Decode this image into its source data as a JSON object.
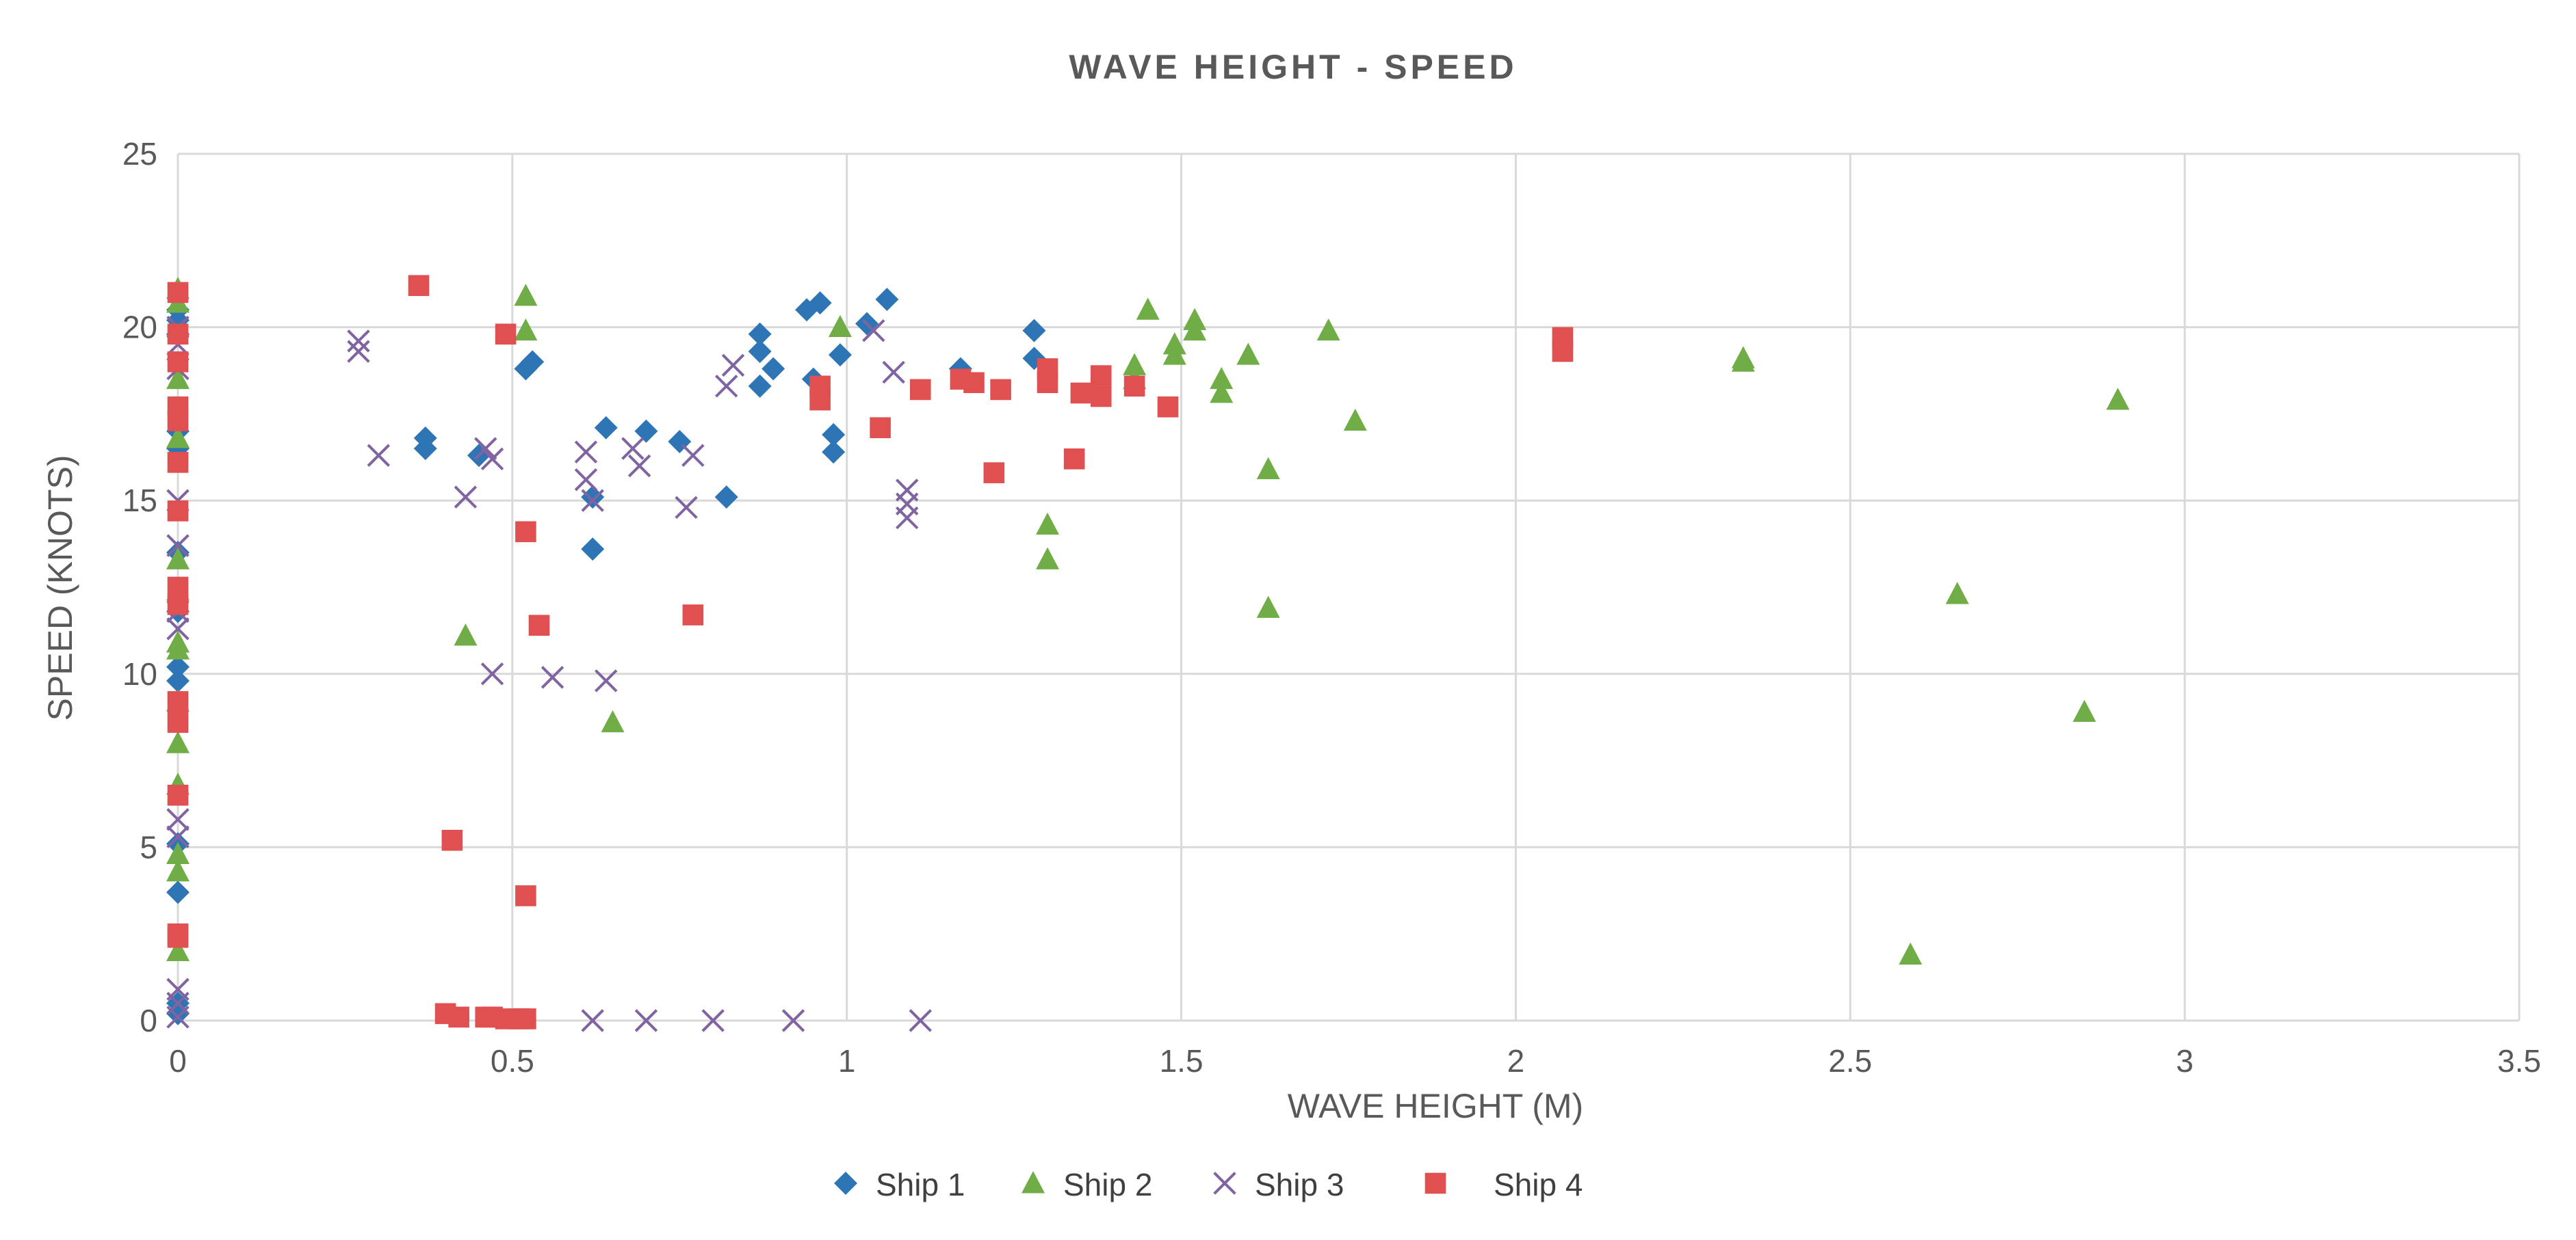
{
  "chart_data": {
    "type": "scatter",
    "title": "WAVE HEIGHT - SPEED",
    "xlabel": "WAVE HEIGHT (M)",
    "ylabel": "SPEED (KNOTS)",
    "xlim": [
      0,
      3.5
    ],
    "ylim": [
      0,
      25
    ],
    "xticks": [
      0,
      0.5,
      1,
      1.5,
      2,
      2.5,
      3,
      3.5
    ],
    "yticks": [
      0,
      5,
      10,
      15,
      20,
      25
    ],
    "grid": true,
    "legend_position": "bottom",
    "series": [
      {
        "name": "Ship 1",
        "color": "#2E75B6",
        "marker": "diamond",
        "points": [
          [
            0,
            20.5
          ],
          [
            0,
            20.2
          ],
          [
            0,
            19.8
          ],
          [
            0,
            17.0
          ],
          [
            0,
            16.5
          ],
          [
            0,
            13.5
          ],
          [
            0,
            11.8
          ],
          [
            0,
            10.2
          ],
          [
            0,
            9.8
          ],
          [
            0,
            5.1
          ],
          [
            0,
            3.7
          ],
          [
            0,
            0.5
          ],
          [
            0,
            0.2
          ],
          [
            0.37,
            16.8
          ],
          [
            0.37,
            16.5
          ],
          [
            0.45,
            16.3
          ],
          [
            0.52,
            18.8
          ],
          [
            0.53,
            19.0
          ],
          [
            0.62,
            15.1
          ],
          [
            0.62,
            13.6
          ],
          [
            0.64,
            17.1
          ],
          [
            0.7,
            17.0
          ],
          [
            0.75,
            16.7
          ],
          [
            0.82,
            15.1
          ],
          [
            0.87,
            19.8
          ],
          [
            0.87,
            19.3
          ],
          [
            0.89,
            18.8
          ],
          [
            0.87,
            18.3
          ],
          [
            0.94,
            20.5
          ],
          [
            0.96,
            20.7
          ],
          [
            0.95,
            18.5
          ],
          [
            0.98,
            16.9
          ],
          [
            0.98,
            16.4
          ],
          [
            0.99,
            19.2
          ],
          [
            1.03,
            20.1
          ],
          [
            1.06,
            20.8
          ],
          [
            1.17,
            18.8
          ],
          [
            1.28,
            19.9
          ],
          [
            1.28,
            19.1
          ]
        ]
      },
      {
        "name": "Ship 2",
        "color": "#70AD47",
        "marker": "triangle",
        "points": [
          [
            0,
            21.1
          ],
          [
            0,
            20.7
          ],
          [
            0,
            18.5
          ],
          [
            0,
            16.8
          ],
          [
            0,
            13.3
          ],
          [
            0,
            12.4
          ],
          [
            0,
            10.9
          ],
          [
            0,
            10.7
          ],
          [
            0,
            9.2
          ],
          [
            0,
            8.0
          ],
          [
            0,
            6.8
          ],
          [
            0,
            4.8
          ],
          [
            0,
            4.3
          ],
          [
            0,
            2.0
          ],
          [
            0.43,
            11.1
          ],
          [
            0.52,
            20.9
          ],
          [
            0.52,
            19.9
          ],
          [
            0.65,
            8.6
          ],
          [
            0.99,
            20.0
          ],
          [
            1.3,
            14.3
          ],
          [
            1.3,
            13.3
          ],
          [
            1.43,
            18.9
          ],
          [
            1.43,
            18.5
          ],
          [
            1.45,
            20.5
          ],
          [
            1.49,
            19.5
          ],
          [
            1.49,
            19.2
          ],
          [
            1.52,
            20.2
          ],
          [
            1.52,
            19.9
          ],
          [
            1.56,
            18.5
          ],
          [
            1.56,
            18.1
          ],
          [
            1.6,
            19.2
          ],
          [
            1.63,
            15.9
          ],
          [
            1.63,
            11.9
          ],
          [
            1.72,
            19.9
          ],
          [
            1.76,
            17.3
          ],
          [
            2.34,
            19.1
          ],
          [
            2.34,
            19.0
          ],
          [
            2.59,
            1.9
          ],
          [
            2.66,
            12.3
          ],
          [
            2.85,
            8.9
          ],
          [
            2.9,
            17.9
          ]
        ]
      },
      {
        "name": "Ship 3",
        "color": "#8064A2",
        "marker": "x",
        "points": [
          [
            0,
            20.0
          ],
          [
            0,
            19.5
          ],
          [
            0,
            18.8
          ],
          [
            0,
            15.0
          ],
          [
            0,
            13.7
          ],
          [
            0,
            11.8
          ],
          [
            0,
            11.3
          ],
          [
            0,
            5.8
          ],
          [
            0,
            5.3
          ],
          [
            0,
            0.9
          ],
          [
            0,
            0.5
          ],
          [
            0,
            0.1
          ],
          [
            0.27,
            19.6
          ],
          [
            0.27,
            19.3
          ],
          [
            0.3,
            16.3
          ],
          [
            0.43,
            15.1
          ],
          [
            0.46,
            16.5
          ],
          [
            0.47,
            16.2
          ],
          [
            0.47,
            10.0
          ],
          [
            0.56,
            9.9
          ],
          [
            0.61,
            16.4
          ],
          [
            0.61,
            15.6
          ],
          [
            0.62,
            15.0
          ],
          [
            0.64,
            9.8
          ],
          [
            0.68,
            16.5
          ],
          [
            0.69,
            16.0
          ],
          [
            0.76,
            14.8
          ],
          [
            0.77,
            16.3
          ],
          [
            0.82,
            18.3
          ],
          [
            0.83,
            18.9
          ],
          [
            1.04,
            19.9
          ],
          [
            1.07,
            18.7
          ],
          [
            1.09,
            15.3
          ],
          [
            1.09,
            14.9
          ],
          [
            1.09,
            14.5
          ],
          [
            0.62,
            0.0
          ],
          [
            0.7,
            0.0
          ],
          [
            0.8,
            0.0
          ],
          [
            0.92,
            0.0
          ],
          [
            1.11,
            0.0
          ]
        ]
      },
      {
        "name": "Ship 4",
        "color": "#E05050",
        "marker": "square",
        "points": [
          [
            0,
            21.0
          ],
          [
            0,
            19.8
          ],
          [
            0,
            19.0
          ],
          [
            0,
            17.7
          ],
          [
            0,
            17.3
          ],
          [
            0,
            16.1
          ],
          [
            0,
            14.7
          ],
          [
            0,
            12.5
          ],
          [
            0,
            12.0
          ],
          [
            0,
            9.2
          ],
          [
            0,
            8.6
          ],
          [
            0,
            6.5
          ],
          [
            0,
            2.5
          ],
          [
            0,
            2.4
          ],
          [
            0.36,
            21.2
          ],
          [
            0.4,
            0.2
          ],
          [
            0.41,
            5.2
          ],
          [
            0.42,
            0.1
          ],
          [
            0.46,
            0.1
          ],
          [
            0.47,
            0.1
          ],
          [
            0.49,
            19.8
          ],
          [
            0.49,
            0.05
          ],
          [
            0.51,
            0.05
          ],
          [
            0.52,
            14.1
          ],
          [
            0.52,
            3.6
          ],
          [
            0.52,
            0.05
          ],
          [
            0.54,
            11.4
          ],
          [
            0.77,
            11.7
          ],
          [
            0.96,
            18.3
          ],
          [
            0.96,
            17.9
          ],
          [
            1.05,
            17.1
          ],
          [
            1.11,
            18.2
          ],
          [
            1.17,
            18.5
          ],
          [
            1.19,
            18.4
          ],
          [
            1.22,
            15.8
          ],
          [
            1.23,
            18.2
          ],
          [
            1.3,
            18.8
          ],
          [
            1.3,
            18.4
          ],
          [
            1.34,
            16.2
          ],
          [
            1.35,
            18.1
          ],
          [
            1.38,
            18.6
          ],
          [
            1.38,
            18.0
          ],
          [
            1.43,
            18.3
          ],
          [
            1.48,
            17.7
          ],
          [
            2.07,
            19.7
          ],
          [
            2.07,
            19.3
          ]
        ]
      }
    ]
  }
}
